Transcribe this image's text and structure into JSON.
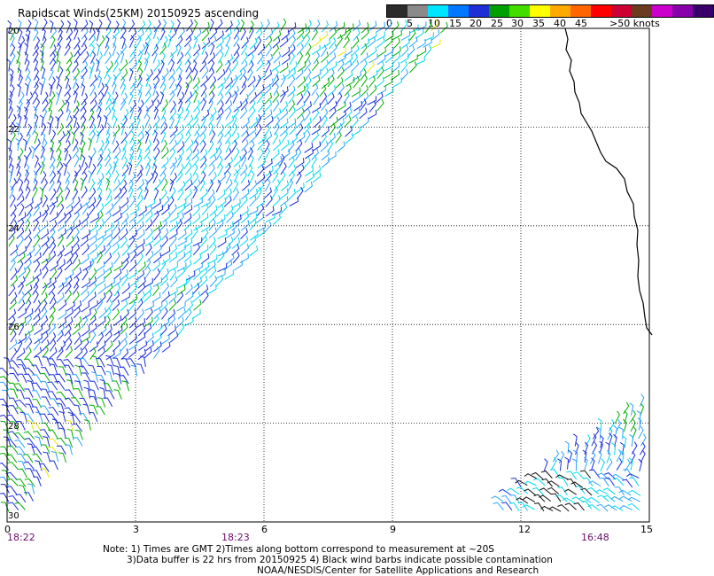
{
  "title": "Rapidscat Winds(25KM) 20150925 ascending",
  "legend": {
    "colors": [
      "#2b2b2b",
      "#8a8a8a",
      "#00e5ff",
      "#0077ff",
      "#1f2fd6",
      "#00a000",
      "#44dd00",
      "#ffff00",
      "#ffaa00",
      "#ff6600",
      "#ff0000",
      "#cc0033",
      "#6b3a1f",
      "#cc00cc",
      "#8800aa",
      "#3a006a"
    ],
    "labels": [
      "0",
      "5",
      "10",
      "15",
      "20",
      "25",
      "30",
      "35",
      "40",
      "45",
      ">50 knots"
    ]
  },
  "map": {
    "lat_labels": [
      "20",
      "22",
      "24",
      "26",
      "28",
      "30"
    ],
    "lon_labels": [
      "0",
      "3",
      "6",
      "9",
      "12",
      "15"
    ],
    "time_labels": [
      "18:22",
      "18:23",
      "16:48"
    ],
    "barb_colors": {
      "cyan": "#00d8ee",
      "lightblue": "#2aa4ff",
      "blue": "#1a2fd8",
      "green": "#00b000",
      "yellow": "#e8e800",
      "black": "#111111"
    }
  },
  "notes": [
    "Note: 1) Times are GMT 2)Times along bottom correspond to measurement at ~20S",
    "3)Data buffer is 22 hrs from 20150925 4) Black wind barbs indicate possible contamination",
    "NOAA/NESDIS/Center for Satellite Applications and Research"
  ]
}
